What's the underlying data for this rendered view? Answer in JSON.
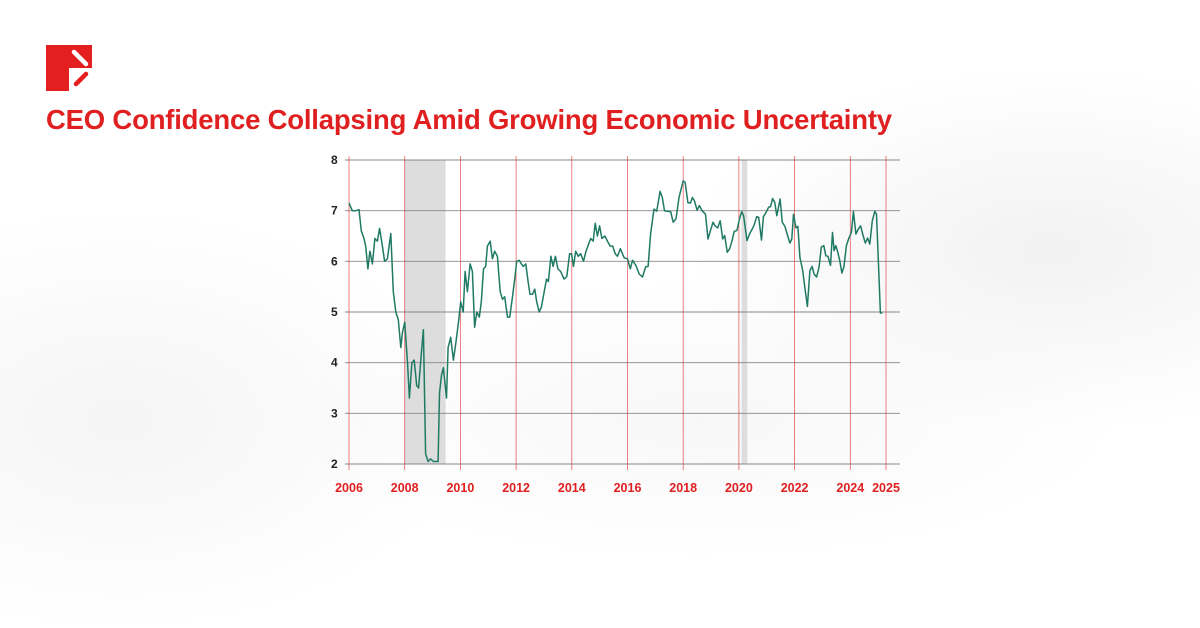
{
  "header": {
    "title": "CEO Confidence Collapsing Amid Growing Economic Uncertainty",
    "logo_icon": "brand-logo-icon"
  },
  "colors": {
    "accent": "#e02020",
    "line": "#1f7a63",
    "shading": "#dcdddc",
    "grid": "#888888"
  },
  "chart_data": {
    "type": "line",
    "title": "",
    "xlabel": "",
    "ylabel": "",
    "xlim": [
      2006,
      2025.5
    ],
    "ylim": [
      2,
      8
    ],
    "grid": true,
    "x_ticks": [
      2006,
      2008,
      2010,
      2012,
      2014,
      2016,
      2018,
      2020,
      2022,
      2024,
      2025
    ],
    "x_tick_labels": [
      "2006",
      "2008",
      "2010",
      "2012",
      "2014",
      "2016",
      "2018",
      "2020",
      "2022",
      "2024",
      "2025"
    ],
    "y_ticks": [
      2,
      3,
      4,
      5,
      6,
      7,
      8
    ],
    "y_tick_labels": [
      "2",
      "3",
      "4",
      "5",
      "6",
      "7",
      "8"
    ],
    "shaded_periods": [
      [
        2008.0,
        2009.47
      ],
      [
        2020.1,
        2020.3
      ]
    ],
    "series": [
      {
        "x": [
          2006.0,
          2006.12,
          2006.24,
          2006.36,
          2006.44,
          2006.54,
          2006.6,
          2006.68,
          2006.75,
          2006.84,
          2006.93,
          2007.02,
          2007.1,
          2007.2,
          2007.28,
          2007.38,
          2007.5,
          2007.59,
          2007.68,
          2007.77,
          2007.86,
          2007.92,
          2008.0,
          2008.1,
          2008.17,
          2008.26,
          2008.34,
          2008.43,
          2008.5,
          2008.6,
          2008.67,
          2008.75,
          2008.84,
          2008.93,
          2009.03,
          2009.1,
          2009.2,
          2009.25,
          2009.32,
          2009.39,
          2009.5,
          2009.56,
          2009.65,
          2009.75,
          2009.84,
          2009.93,
          2010.01,
          2010.1,
          2010.17,
          2010.25,
          2010.35,
          2010.43,
          2010.51,
          2010.59,
          2010.68,
          2010.75,
          2010.83,
          2010.91,
          2010.97,
          2011.07,
          2011.15,
          2011.23,
          2011.33,
          2011.43,
          2011.51,
          2011.59,
          2011.69,
          2011.77,
          2011.87,
          2011.95,
          2012.02,
          2012.11,
          2012.19,
          2012.26,
          2012.35,
          2012.43,
          2012.5,
          2012.59,
          2012.67,
          2012.74,
          2012.83,
          2012.91,
          2013.01,
          2013.09,
          2013.16,
          2013.25,
          2013.33,
          2013.41,
          2013.5,
          2013.6,
          2013.72,
          2013.82,
          2013.92,
          2013.99,
          2014.06,
          2014.14,
          2014.23,
          2014.32,
          2014.42,
          2014.51,
          2014.61,
          2014.68,
          2014.77,
          2014.84,
          2014.92,
          2015.0,
          2015.08,
          2015.19,
          2015.28,
          2015.38,
          2015.47,
          2015.56,
          2015.64,
          2015.74,
          2015.88,
          2016.0,
          2016.1,
          2016.18,
          2016.3,
          2016.42,
          2016.54,
          2016.65,
          2016.74,
          2016.83,
          2016.95,
          2017.05,
          2017.17,
          2017.25,
          2017.33,
          2017.43,
          2017.55,
          2017.64,
          2017.74,
          2017.85,
          2018.0,
          2018.07,
          2018.17,
          2018.26,
          2018.33,
          2018.4,
          2018.5,
          2018.58,
          2018.68,
          2018.8,
          2018.89,
          2018.98,
          2019.07,
          2019.15,
          2019.24,
          2019.33,
          2019.42,
          2019.49,
          2019.58,
          2019.67,
          2019.76,
          2019.83,
          2019.93,
          2020.02,
          2020.1,
          2020.17,
          2020.29,
          2020.38,
          2020.48,
          2020.55,
          2020.64,
          2020.71,
          2020.81,
          2020.88,
          2020.98,
          2021.07,
          2021.14,
          2021.21,
          2021.29,
          2021.36,
          2021.48,
          2021.56,
          2021.65,
          2021.75,
          2021.83,
          2021.9,
          2021.96,
          2022.05,
          2022.12,
          2022.19,
          2022.29,
          2022.38,
          2022.46,
          2022.55,
          2022.63,
          2022.7,
          2022.79,
          2022.88,
          2022.96,
          2023.05,
          2023.12,
          2023.2,
          2023.29,
          2023.36,
          2023.42,
          2023.48,
          2023.55,
          2023.62,
          2023.7,
          2023.77,
          2023.86,
          2023.95,
          2024.04,
          2024.11,
          2024.2,
          2024.29,
          2024.37,
          2024.46,
          2024.54,
          2024.62,
          2024.7,
          2024.79,
          2024.88,
          2024.94,
          2025.08,
          2025.15
        ],
        "y": [
          7.15,
          7.0,
          7.0,
          7.02,
          6.6,
          6.45,
          6.3,
          5.85,
          6.2,
          5.95,
          6.45,
          6.4,
          6.65,
          6.3,
          6.0,
          6.05,
          6.55,
          5.4,
          5.0,
          4.85,
          4.3,
          4.6,
          4.8,
          4.0,
          3.3,
          4.0,
          4.05,
          3.55,
          3.5,
          4.2,
          4.65,
          2.2,
          2.05,
          2.1,
          2.05,
          2.05,
          2.05,
          3.4,
          3.75,
          3.9,
          3.3,
          4.3,
          4.5,
          4.05,
          4.4,
          4.8,
          5.2,
          5.0,
          5.8,
          5.4,
          5.95,
          5.8,
          4.7,
          5.0,
          4.9,
          5.2,
          5.85,
          5.9,
          6.3,
          6.4,
          6.05,
          6.2,
          6.1,
          5.4,
          5.25,
          5.3,
          4.9,
          4.9,
          5.3,
          5.65,
          6.0,
          6.02,
          5.95,
          5.9,
          5.95,
          5.6,
          5.35,
          5.35,
          5.45,
          5.2,
          5.0,
          5.1,
          5.4,
          5.65,
          5.6,
          6.1,
          5.9,
          6.1,
          5.85,
          5.8,
          5.65,
          5.7,
          6.15,
          6.15,
          5.9,
          6.2,
          6.1,
          6.15,
          6.0,
          6.2,
          6.35,
          6.45,
          6.4,
          6.75,
          6.5,
          6.7,
          6.45,
          6.5,
          6.4,
          6.3,
          6.3,
          6.15,
          6.1,
          6.25,
          6.07,
          6.05,
          5.85,
          6.02,
          5.92,
          5.75,
          5.69,
          5.89,
          5.9,
          6.54,
          7.03,
          6.99,
          7.38,
          7.26,
          7.0,
          6.99,
          6.98,
          6.77,
          6.84,
          7.26,
          7.59,
          7.56,
          7.16,
          7.15,
          7.26,
          7.2,
          7.01,
          7.1,
          7.0,
          6.93,
          6.44,
          6.61,
          6.77,
          6.7,
          6.66,
          6.8,
          6.44,
          6.51,
          6.18,
          6.25,
          6.42,
          6.59,
          6.61,
          6.84,
          6.98,
          6.9,
          6.41,
          6.54,
          6.64,
          6.72,
          6.88,
          6.87,
          6.42,
          6.88,
          6.97,
          7.07,
          7.08,
          7.24,
          7.16,
          6.9,
          7.23,
          6.77,
          6.69,
          6.51,
          6.36,
          6.44,
          6.93,
          6.66,
          6.69,
          6.08,
          5.82,
          5.43,
          5.11,
          5.82,
          5.9,
          5.75,
          5.69,
          5.89,
          6.28,
          6.31,
          6.11,
          6.1,
          5.92,
          6.57,
          6.21,
          6.31,
          6.18,
          6.02,
          5.77,
          5.89,
          6.31,
          6.46,
          6.57,
          6.99,
          6.54,
          6.64,
          6.7,
          6.51,
          6.36,
          6.46,
          6.34,
          6.8,
          6.99,
          6.93,
          4.98,
          4.98
        ]
      }
    ]
  }
}
